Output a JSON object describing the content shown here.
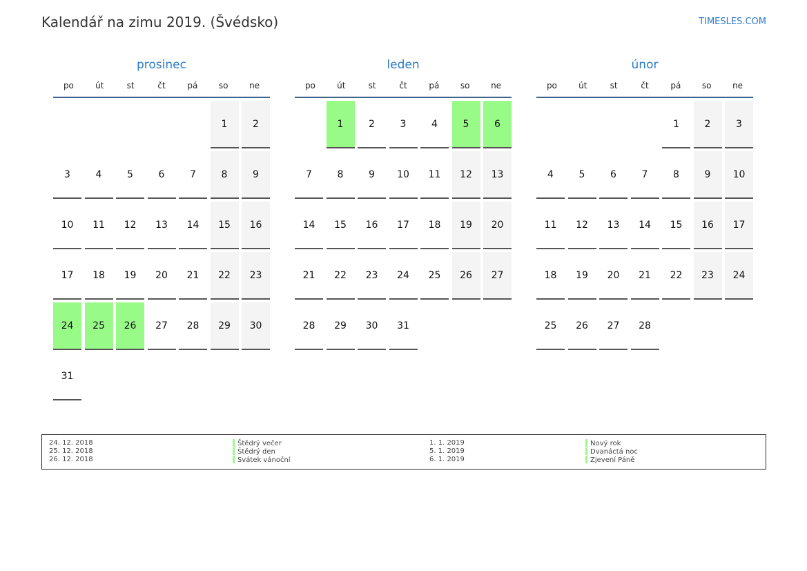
{
  "title": "Kalendář na zimu 2019. (Švédsko)",
  "brand": "TIMESLES.COM",
  "colors": {
    "accent": "#2a7bc8",
    "weekend": "#f4f4f4",
    "holiday": "#98fb88"
  },
  "weekdays": [
    "po",
    "út",
    "st",
    "čt",
    "pá",
    "so",
    "ne"
  ],
  "months": [
    {
      "name": "prosinec",
      "offset": 5,
      "days": 31,
      "holidays": [
        24,
        25,
        26
      ]
    },
    {
      "name": "leden",
      "offset": 1,
      "days": 31,
      "holidays": [
        1,
        5,
        6
      ]
    },
    {
      "name": "únor",
      "offset": 4,
      "days": 28,
      "holidays": []
    }
  ],
  "legend": [
    {
      "date": "24. 12. 2018",
      "name": "Štědrý večer"
    },
    {
      "date": "25. 12. 2018",
      "name": "Štědrý den"
    },
    {
      "date": "26. 12. 2018",
      "name": "Svátek vánoční"
    },
    {
      "date": "1. 1. 2019",
      "name": "Nový rok"
    },
    {
      "date": "5. 1. 2019",
      "name": "Dvanáctá noc"
    },
    {
      "date": "6. 1. 2019",
      "name": "Zjevení Páně"
    }
  ]
}
